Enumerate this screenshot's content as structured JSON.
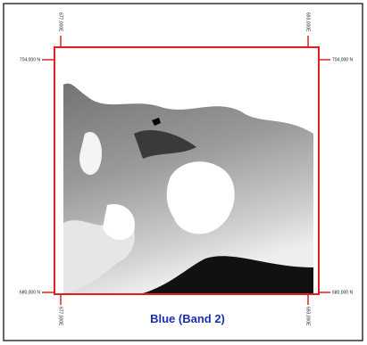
{
  "map": {
    "title": "Blue (Band 2)",
    "northings": {
      "top": "704,000 N",
      "bottom": "680,000 N"
    },
    "eastings": {
      "left": "677,000E",
      "right": "693,000E"
    }
  }
}
